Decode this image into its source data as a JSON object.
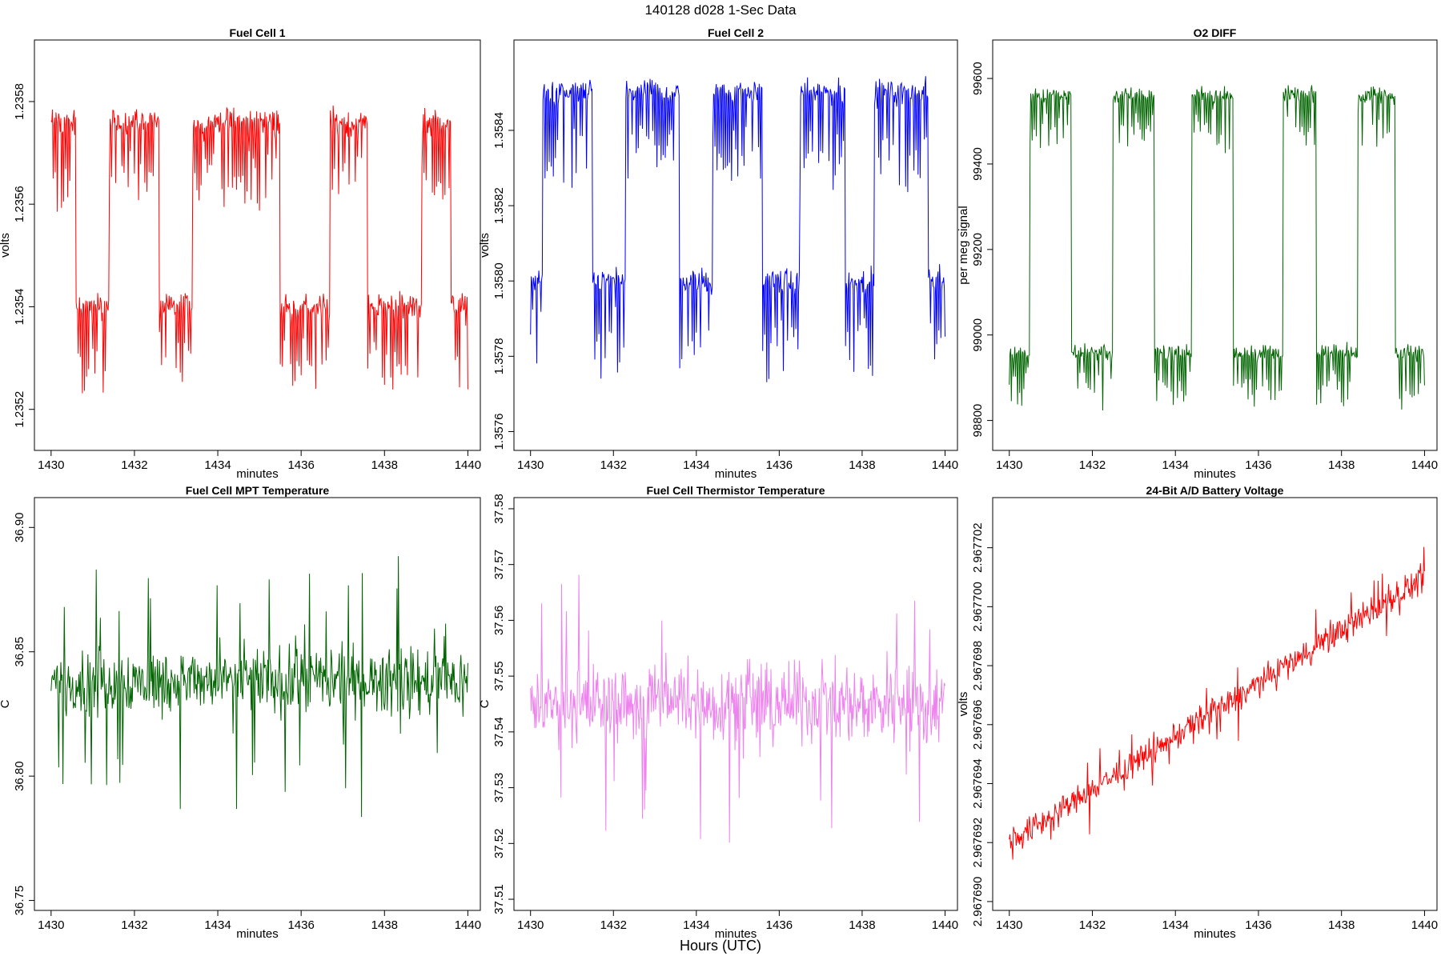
{
  "figure": {
    "title": "140128   d028   1-Sec Data",
    "xlabel": "Hours (UTC)"
  },
  "chart_data": [
    {
      "type": "line",
      "title": "Fuel Cell 1",
      "xlabel": "minutes",
      "ylabel": "volts",
      "color": "#ff0000",
      "xlim": [
        1429.6,
        1440.3
      ],
      "ylim": [
        1.23512,
        1.23592
      ],
      "xticks": [
        "1430",
        "1432",
        "1434",
        "1436",
        "1438",
        "1440"
      ],
      "yticks": [
        "1.2352",
        "1.2354",
        "1.2356",
        "1.2358"
      ],
      "pattern": {
        "kind": "square",
        "low": 1.2354,
        "high": 1.23576,
        "noise": 4e-05,
        "spike": 0.00016,
        "spike_dir": -1,
        "breaks": [
          1430.6,
          1431.4,
          1432.6,
          1433.4,
          1435.5,
          1436.7,
          1437.6,
          1438.9,
          1439.6
        ],
        "start_high": true
      }
    },
    {
      "type": "line",
      "title": "Fuel Cell 2",
      "xlabel": "minutes",
      "ylabel": "volts",
      "color": "#0000ff",
      "xlim": [
        1429.6,
        1440.3
      ],
      "ylim": [
        1.35755,
        1.35864
      ],
      "xticks": [
        "1430",
        "1432",
        "1434",
        "1436",
        "1438",
        "1440"
      ],
      "yticks": [
        "1.3576",
        "1.3578",
        "1.3580",
        "1.3582",
        "1.3584"
      ],
      "pattern": {
        "kind": "square",
        "low": 1.358,
        "high": 1.3585,
        "noise": 5e-05,
        "spike": 0.00024,
        "spike_dir": -1,
        "breaks": [
          1430.3,
          1431.5,
          1432.3,
          1433.6,
          1434.4,
          1435.6,
          1436.5,
          1437.6,
          1438.3,
          1439.6
        ],
        "start_high": false
      }
    },
    {
      "type": "line",
      "title": "O2 DIFF",
      "xlabel": "minutes",
      "ylabel": "per meg signal",
      "color": "#006400",
      "xlim": [
        1429.6,
        1440.3
      ],
      "ylim": [
        98730,
        99690
      ],
      "xticks": [
        "1430",
        "1432",
        "1434",
        "1436",
        "1438",
        "1440"
      ],
      "yticks": [
        "98800",
        "99000",
        "99200",
        "99400",
        "99600"
      ],
      "pattern": {
        "kind": "square",
        "low": 98960,
        "high": 99560,
        "noise": 30,
        "spike": 120,
        "spike_dir": -1,
        "breaks": [
          1430.5,
          1431.5,
          1432.5,
          1433.5,
          1434.4,
          1435.4,
          1436.6,
          1437.4,
          1438.4,
          1439.3
        ],
        "start_high": false
      }
    },
    {
      "type": "line",
      "title": "Fuel Cell MPT Temperature",
      "xlabel": "minutes",
      "ylabel": "C",
      "color": "#006400",
      "xlim": [
        1429.6,
        1440.3
      ],
      "ylim": [
        36.746,
        36.912
      ],
      "xticks": [
        "1430",
        "1432",
        "1434",
        "1436",
        "1438",
        "1440"
      ],
      "yticks": [
        "36.75",
        "36.80",
        "36.85",
        "36.90"
      ],
      "pattern": {
        "kind": "noise",
        "center": 36.838,
        "noise": 0.02,
        "spike": 0.05,
        "trend": 0
      }
    },
    {
      "type": "line",
      "title": "Fuel Cell Thermistor Temperature",
      "xlabel": "minutes",
      "ylabel": "C",
      "color": "#ee82ee",
      "xlim": [
        1429.6,
        1440.3
      ],
      "ylim": [
        37.508,
        37.582
      ],
      "xticks": [
        "1430",
        "1432",
        "1434",
        "1436",
        "1438",
        "1440"
      ],
      "yticks": [
        "37.51",
        "37.52",
        "37.53",
        "37.54",
        "37.55",
        "37.56",
        "37.57",
        "37.58"
      ],
      "pattern": {
        "kind": "noise",
        "center": 37.545,
        "noise": 0.01,
        "spike": 0.022,
        "trend": 0
      }
    },
    {
      "type": "line",
      "title": "24-Bit A/D Battery Voltage",
      "xlabel": "minutes",
      "ylabel": "volts",
      "color": "#ff0000",
      "xlim": [
        1429.6,
        1440.3
      ],
      "ylim": [
        2.9676897,
        2.9677037
      ],
      "xticks": [
        "1430",
        "1432",
        "1434",
        "1436",
        "1438",
        "1440"
      ],
      "yticks": [
        "2.967690",
        "2.967692",
        "2.967694",
        "2.967696",
        "2.967698",
        "2.967700",
        "2.967702"
      ],
      "pattern": {
        "kind": "noise",
        "center": 2.967692,
        "noise": 7e-07,
        "spike": 1.2e-06,
        "trend": 9e-07
      }
    }
  ]
}
